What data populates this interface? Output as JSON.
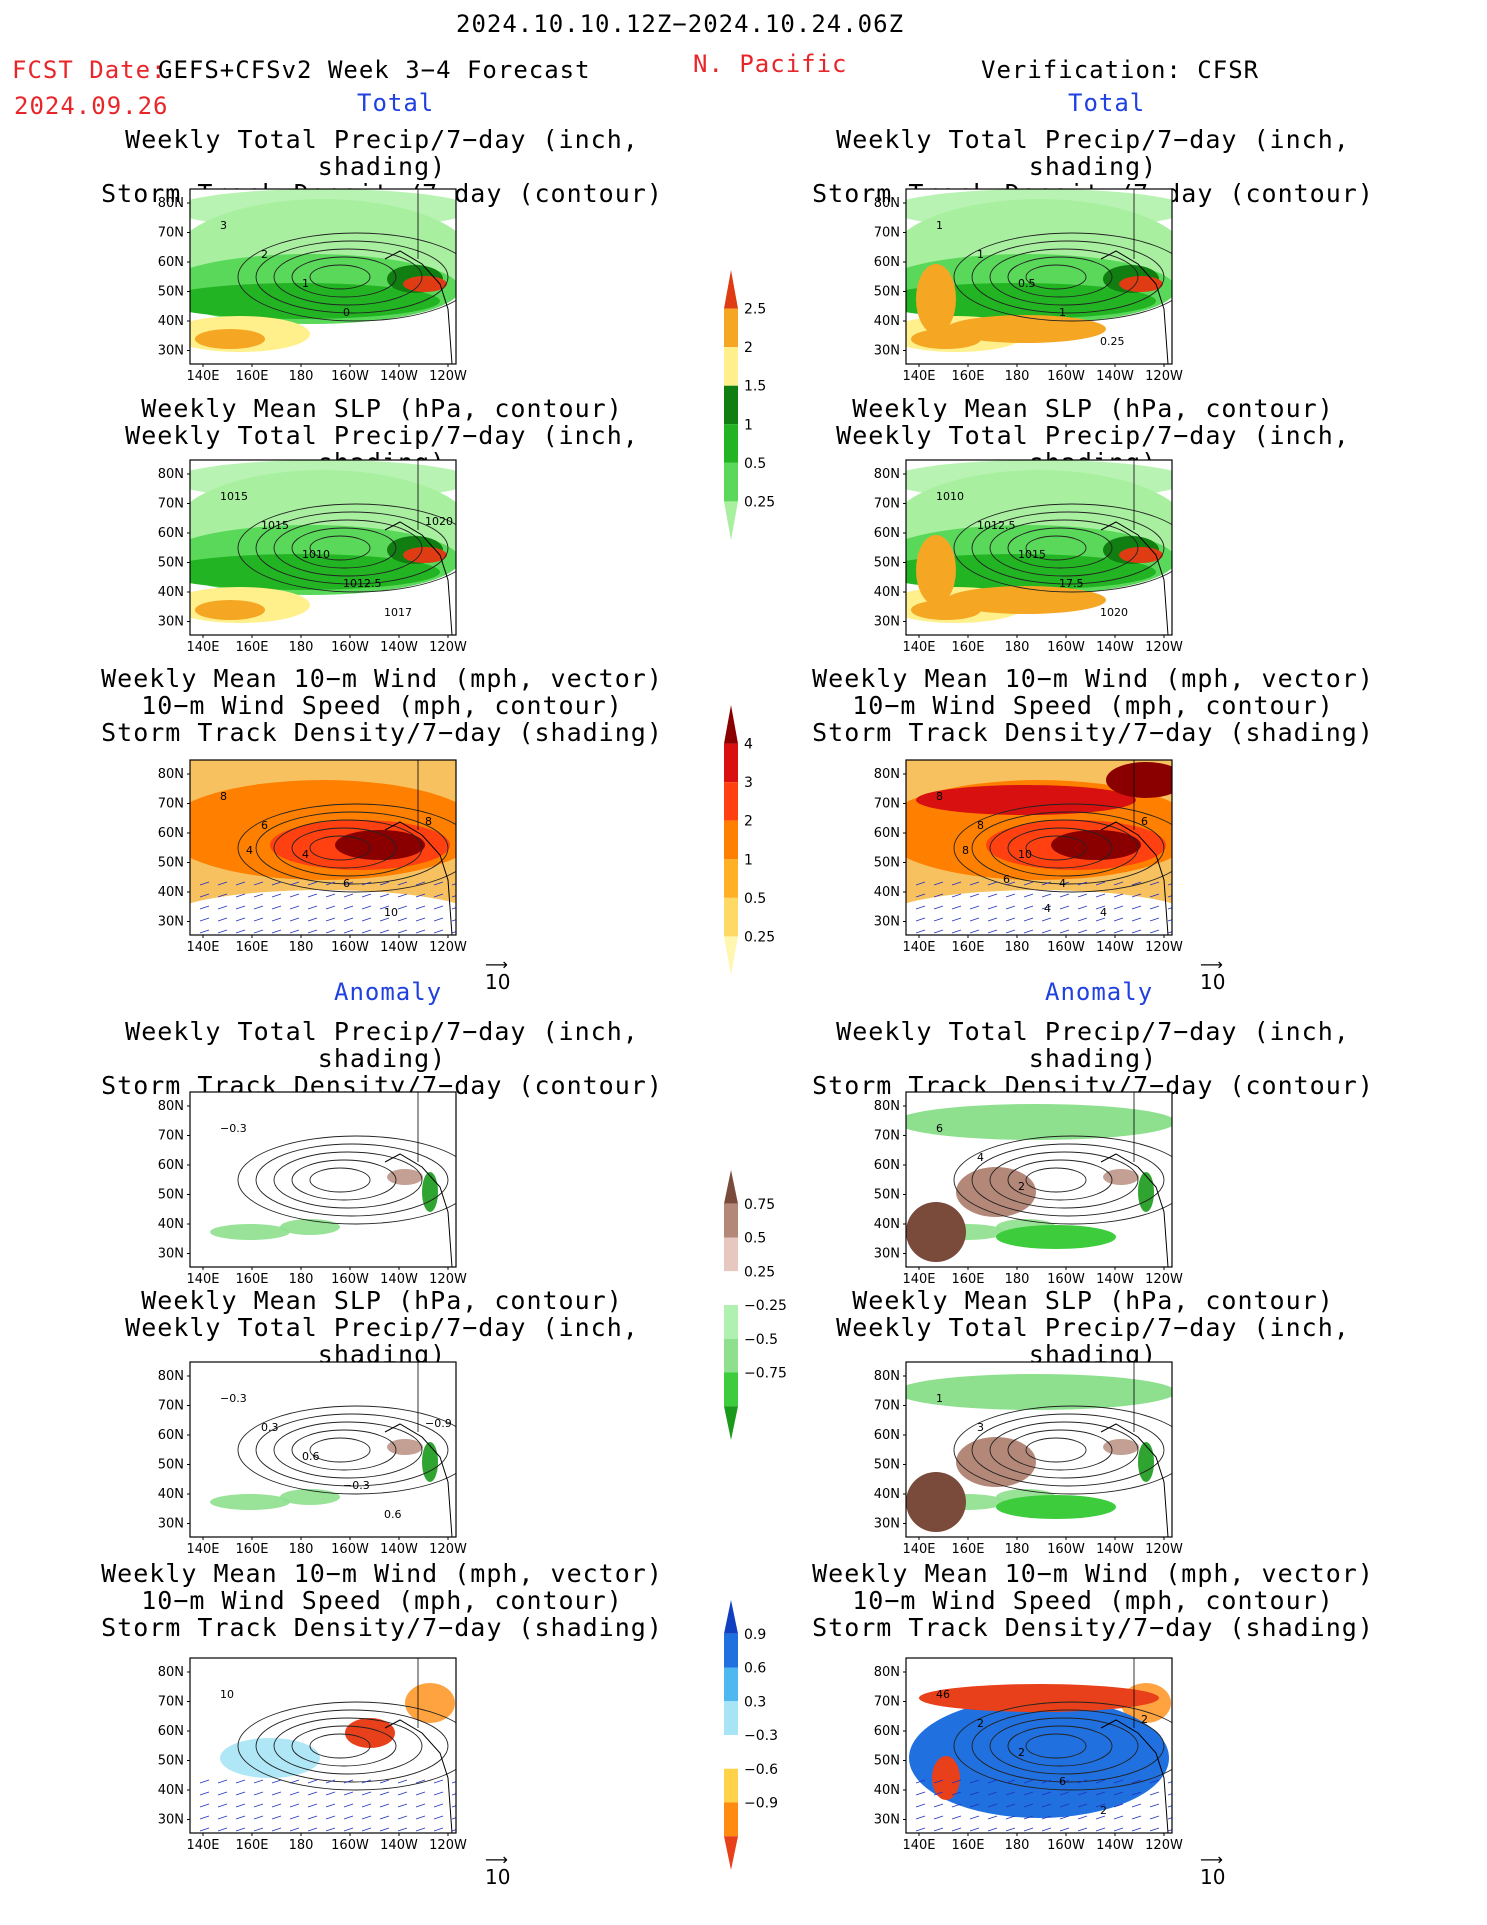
{
  "header": {
    "date_range": "2024.10.10.12Z−2024.10.24.06Z",
    "fcst_date_label": "FCST Date:",
    "model_label": "GEFS+CFSv2 Week 3−4 Forecast",
    "fcst_date": "2024.09.26",
    "region": "N. Pacific",
    "verification": "Verification: CFSR"
  },
  "sections": {
    "total": "Total",
    "anomaly": "Anomaly"
  },
  "titles": {
    "precip_storm": [
      "Weekly Total Precip/7−day (inch, shading)",
      "Storm Track Density/7−day (contour)"
    ],
    "slp_precip": [
      "Weekly Mean SLP (hPa, contour)",
      "Weekly Total Precip/7−day (inch, shading)"
    ],
    "wind_storm": [
      "Weekly Mean 10−m Wind (mph, vector)",
      "10−m Wind Speed (mph, contour)",
      "Storm Track Density/7−day (shading)"
    ]
  },
  "axes": {
    "lat_ticks": [
      "80N",
      "70N",
      "60N",
      "50N",
      "40N",
      "30N"
    ],
    "lon_ticks": [
      "140E",
      "160E",
      "180",
      "160W",
      "140W",
      "120W"
    ]
  },
  "vector_ref": "10",
  "colorbars": {
    "precip_total": {
      "levels": [
        "0.25",
        "0.5",
        "1",
        "1.5",
        "2",
        "2.5"
      ],
      "colors": [
        "#a8f0a0",
        "#5ad85a",
        "#22b422",
        "#107e10",
        "#fff08c",
        "#f5a623",
        "#e03c14"
      ]
    },
    "storm_total": {
      "levels": [
        "0.25",
        "0.5",
        "1",
        "2",
        "3",
        "4"
      ],
      "colors": [
        "#fff6b0",
        "#ffd966",
        "#ffb024",
        "#ff8000",
        "#ff4010",
        "#d81010",
        "#8a0000"
      ]
    },
    "precip_anom": {
      "levels": [
        "0.75",
        "0.5",
        "0.25",
        "−0.25",
        "−0.5",
        "−0.75"
      ],
      "colors": [
        "#1a9a1a",
        "#3ccc3c",
        "#8ee08e",
        "#b0f0b0",
        "#ffffff",
        "#e6c8c0",
        "#b48878",
        "#7a4a3a"
      ]
    },
    "storm_anom": {
      "levels": [
        "0.9",
        "0.6",
        "0.3",
        "−0.3",
        "−0.6",
        "−0.9"
      ],
      "colors": [
        "#e8401a",
        "#ff8c10",
        "#ffd24a",
        "#ffffff",
        "#a6e4f6",
        "#50b8f0",
        "#2070e0",
        "#1040c0"
      ]
    }
  },
  "contour_labels": {
    "p1": [
      "3",
      "2",
      "1",
      "0"
    ],
    "p2": [
      "1015",
      "1015",
      "1010",
      "1012.5",
      "1017",
      "1020"
    ],
    "p3": [
      "8",
      "6",
      "4",
      "6",
      "10",
      "8",
      "4"
    ],
    "p4": [
      "1",
      "1",
      "0.5",
      "1",
      "0.25"
    ],
    "p5": [
      "1010",
      "1012.5",
      "1015",
      "17.5",
      "1020"
    ],
    "p6": [
      "8",
      "8",
      "10",
      "4",
      "4",
      "6",
      "8",
      "6",
      "4"
    ],
    "p7": [
      "−0.3"
    ],
    "p8": [
      "−0.3",
      "0.3",
      "0.6",
      "−0.3",
      "0.6",
      "−0.9"
    ],
    "p9": [
      "10"
    ],
    "p10": [
      "6",
      "4",
      "2"
    ],
    "p11": [
      "1",
      "3"
    ],
    "p12": [
      "46",
      "2",
      "2",
      "6",
      "2",
      "2"
    ]
  }
}
